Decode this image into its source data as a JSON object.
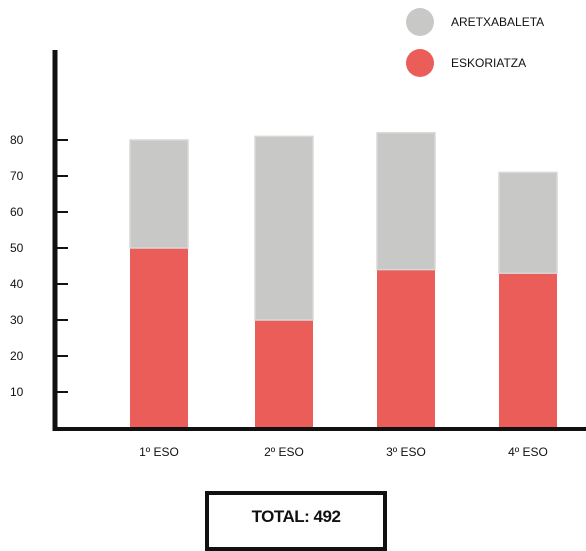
{
  "chart_data": {
    "type": "bar",
    "stacked": true,
    "categories": [
      "1º ESO",
      "2º ESO",
      "3º ESO",
      "4º ESO"
    ],
    "series": [
      {
        "name": "ESKORIATZA",
        "color": "#ea5d59",
        "values": [
          50,
          30,
          44,
          43
        ]
      },
      {
        "name": "ARETXABALETA",
        "color": "#c8c8c7",
        "values": [
          30,
          51,
          38,
          28
        ]
      }
    ],
    "yticks": [
      10,
      20,
      30,
      40,
      50,
      60,
      70,
      80
    ],
    "ylim": [
      0,
      90
    ],
    "grid": false,
    "legend_position": "top-right",
    "axis_color": "#111111"
  },
  "total": {
    "label": "TOTAL: 492"
  }
}
